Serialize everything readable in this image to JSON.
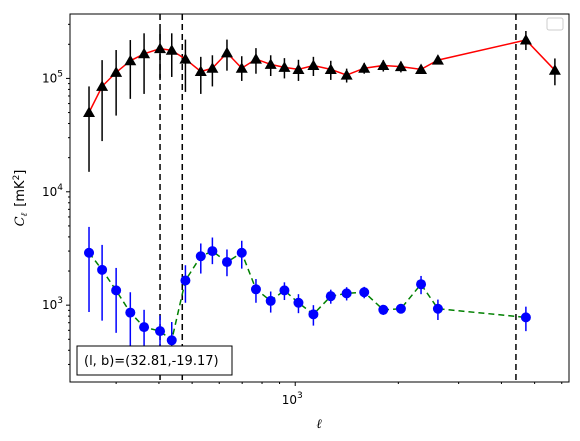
{
  "chart_data": {
    "type": "scatter",
    "xscale": "log",
    "yscale": "log",
    "xlim": [
      220,
      6300
    ],
    "ylim": [
      210,
      370000
    ],
    "xlabel": "ℓ",
    "ylabel_symbol": "C",
    "ylabel_sub": "ℓ",
    "ylabel_unit_open": "[mK",
    "ylabel_unit_sup": "2",
    "ylabel_unit_close": "]",
    "x_ticks": [
      {
        "value": 1000,
        "base": "10",
        "exp": "3"
      }
    ],
    "y_ticks": [
      {
        "value": 1000,
        "base": "10",
        "exp": "3"
      },
      {
        "value": 10000,
        "base": "10",
        "exp": "4"
      },
      {
        "value": 100000,
        "base": "10",
        "exp": "5"
      }
    ],
    "vlines": [
      403,
      468,
      4410
    ],
    "annotation": "(l, b)=(32.81,-19.17)",
    "legend_placement": "top-right",
    "series": [
      {
        "marker": "triangle",
        "color": "#000000",
        "line_color": "#ff0000",
        "line_style": "solid",
        "points": [
          {
            "x": 250,
            "y": 50000,
            "lo": 15000,
            "hi": 85000
          },
          {
            "x": 273,
            "y": 85000,
            "lo": 28000,
            "hi": 145000
          },
          {
            "x": 300,
            "y": 113000,
            "lo": 47000,
            "hi": 178000
          },
          {
            "x": 330,
            "y": 143000,
            "lo": 66000,
            "hi": 218000
          },
          {
            "x": 362,
            "y": 165000,
            "lo": 73000,
            "hi": 250000
          },
          {
            "x": 403,
            "y": 183000,
            "lo": 100000,
            "hi": 268000
          },
          {
            "x": 436,
            "y": 177000,
            "lo": 103000,
            "hi": 250000
          },
          {
            "x": 478,
            "y": 148000,
            "lo": 76000,
            "hi": 220000
          },
          {
            "x": 530,
            "y": 115000,
            "lo": 73000,
            "hi": 155000
          },
          {
            "x": 573,
            "y": 123000,
            "lo": 85000,
            "hi": 160000
          },
          {
            "x": 632,
            "y": 168000,
            "lo": 117000,
            "hi": 220000
          },
          {
            "x": 698,
            "y": 123000,
            "lo": 95000,
            "hi": 157000
          },
          {
            "x": 768,
            "y": 148000,
            "lo": 110000,
            "hi": 185000
          },
          {
            "x": 848,
            "y": 133000,
            "lo": 105000,
            "hi": 160000
          },
          {
            "x": 930,
            "y": 125000,
            "lo": 100000,
            "hi": 151000
          },
          {
            "x": 1022,
            "y": 120000,
            "lo": 95000,
            "hi": 146000
          },
          {
            "x": 1130,
            "y": 130000,
            "lo": 105000,
            "hi": 155000
          },
          {
            "x": 1270,
            "y": 120000,
            "lo": 97000,
            "hi": 143000
          },
          {
            "x": 1413,
            "y": 107000,
            "lo": 92000,
            "hi": 122000
          },
          {
            "x": 1590,
            "y": 123000,
            "lo": 110000,
            "hi": 137000
          },
          {
            "x": 1808,
            "y": 130000,
            "lo": 115000,
            "hi": 145000
          },
          {
            "x": 2035,
            "y": 127000,
            "lo": 113000,
            "hi": 141000
          },
          {
            "x": 2330,
            "y": 120000,
            "lo": 110000,
            "hi": 130000
          },
          {
            "x": 2610,
            "y": 145000,
            "lo": 133000,
            "hi": 158000
          },
          {
            "x": 4715,
            "y": 218000,
            "lo": 178000,
            "hi": 262000
          },
          {
            "x": 5730,
            "y": 118000,
            "lo": 87000,
            "hi": 150000
          }
        ]
      },
      {
        "marker": "circle",
        "color": "#0000ff",
        "line_color": "#008000",
        "line_style": "dashed",
        "points": [
          {
            "x": 250,
            "y": 2900,
            "lo": 870,
            "hi": 4900
          },
          {
            "x": 273,
            "y": 2050,
            "lo": 730,
            "hi": 3400
          },
          {
            "x": 300,
            "y": 1350,
            "lo": 570,
            "hi": 2130
          },
          {
            "x": 330,
            "y": 860,
            "lo": 420,
            "hi": 1300
          },
          {
            "x": 362,
            "y": 640,
            "lo": 370,
            "hi": 910
          },
          {
            "x": 403,
            "y": 590,
            "lo": 370,
            "hi": 810
          },
          {
            "x": 436,
            "y": 490,
            "lo": 270,
            "hi": 710
          },
          {
            "x": 478,
            "y": 1650,
            "lo": 1050,
            "hi": 2250
          },
          {
            "x": 530,
            "y": 2700,
            "lo": 1900,
            "hi": 3500
          },
          {
            "x": 573,
            "y": 3000,
            "lo": 2300,
            "hi": 3950
          },
          {
            "x": 632,
            "y": 2400,
            "lo": 1800,
            "hi": 3100
          },
          {
            "x": 698,
            "y": 2900,
            "lo": 2100,
            "hi": 3700
          },
          {
            "x": 768,
            "y": 1380,
            "lo": 1050,
            "hi": 1700
          },
          {
            "x": 848,
            "y": 1090,
            "lo": 860,
            "hi": 1320
          },
          {
            "x": 930,
            "y": 1350,
            "lo": 1110,
            "hi": 1590
          },
          {
            "x": 1022,
            "y": 1050,
            "lo": 850,
            "hi": 1250
          },
          {
            "x": 1130,
            "y": 830,
            "lo": 660,
            "hi": 1000
          },
          {
            "x": 1270,
            "y": 1200,
            "lo": 1030,
            "hi": 1370
          },
          {
            "x": 1413,
            "y": 1270,
            "lo": 1100,
            "hi": 1440
          },
          {
            "x": 1590,
            "y": 1300,
            "lo": 1150,
            "hi": 1450
          },
          {
            "x": 1808,
            "y": 910,
            "lo": 820,
            "hi": 1000
          },
          {
            "x": 2035,
            "y": 930,
            "lo": 850,
            "hi": 1010
          },
          {
            "x": 2330,
            "y": 1530,
            "lo": 1250,
            "hi": 1810
          },
          {
            "x": 2610,
            "y": 930,
            "lo": 740,
            "hi": 1120
          },
          {
            "x": 4715,
            "y": 780,
            "lo": 590,
            "hi": 970
          }
        ]
      }
    ]
  }
}
